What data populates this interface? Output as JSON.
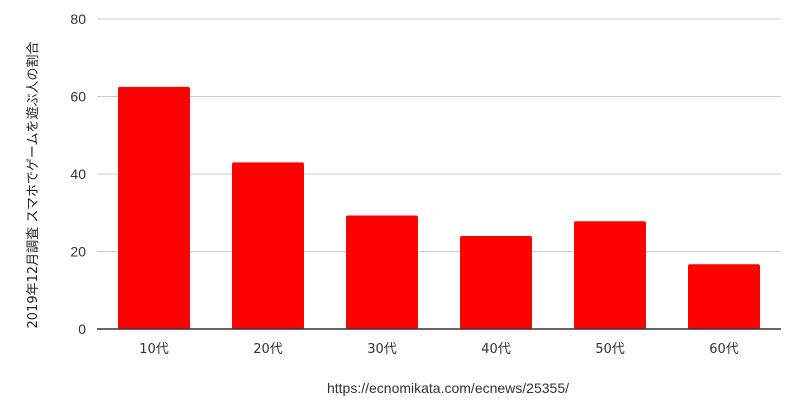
{
  "chart_data": {
    "type": "bar",
    "categories": [
      "10代",
      "20代",
      "30代",
      "40代",
      "50代",
      "60代"
    ],
    "values": [
      62.5,
      43,
      29.3,
      24,
      27.8,
      16.7
    ],
    "title": "",
    "xlabel": "",
    "ylabel_main": "スマホでゲームを遊ぶ人の割合",
    "ylabel_suffix": "2019年12月調査",
    "ylim": [
      0,
      80
    ],
    "yticks": [
      0,
      20,
      40,
      60,
      80
    ],
    "grid": true,
    "bar_color": "#ff0000",
    "gridline_color": "#cccccc",
    "axis_color": "#333333"
  },
  "source": "https://ecnomikata.com/ecnews/25355/"
}
